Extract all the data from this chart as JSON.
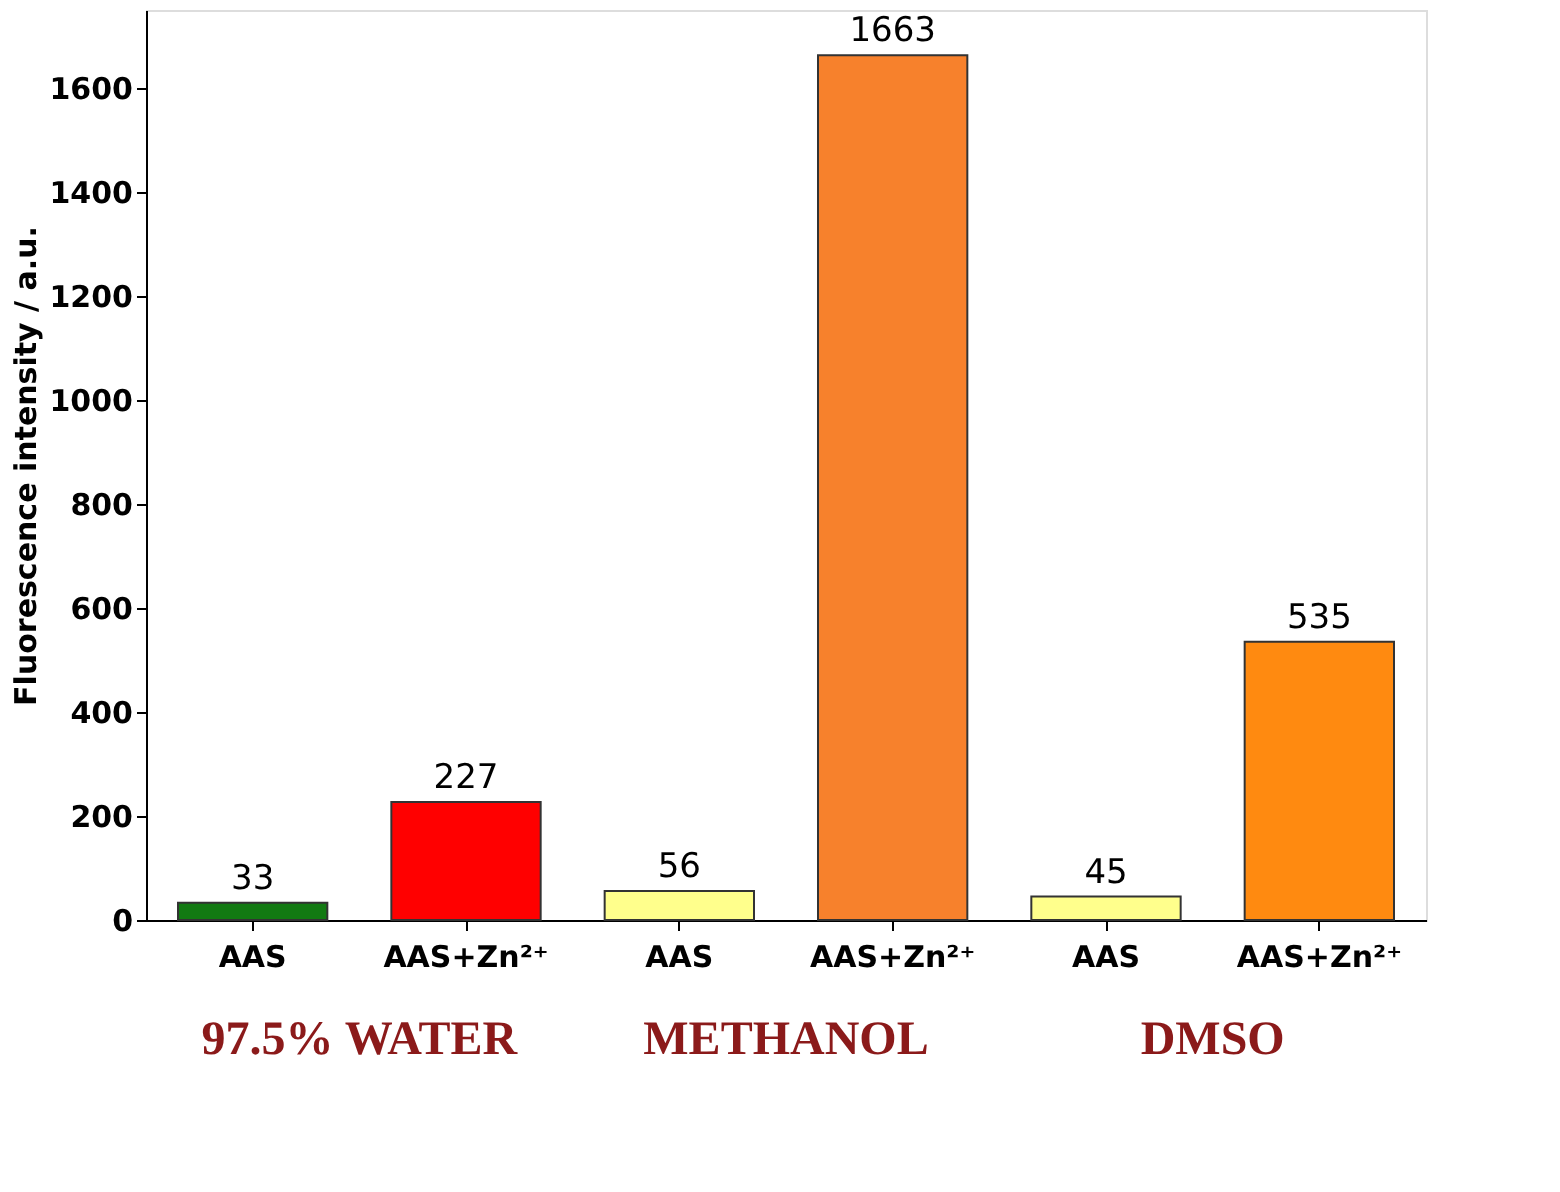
{
  "chart_data": {
    "type": "bar",
    "ylabel": "Fluorescence intensity / a.u.",
    "categories": [
      "AAS",
      "AAS+Zn²⁺",
      "AAS",
      "AAS+Zn²⁺",
      "AAS",
      "AAS+Zn²⁺"
    ],
    "values": [
      33,
      227,
      56,
      1663,
      45,
      535
    ],
    "colors": [
      "#127a12",
      "#ff0000",
      "#ffff8c",
      "#f7812c",
      "#ffff8c",
      "#ff8a10"
    ],
    "ylim": [
      0,
      1750
    ],
    "yticks": [
      0,
      200,
      400,
      600,
      800,
      1000,
      1200,
      1400,
      1600
    ],
    "data_labels": true,
    "grid": false,
    "annotations": [
      "97.5% WATER",
      "METHANOL",
      "DMSO"
    ]
  }
}
